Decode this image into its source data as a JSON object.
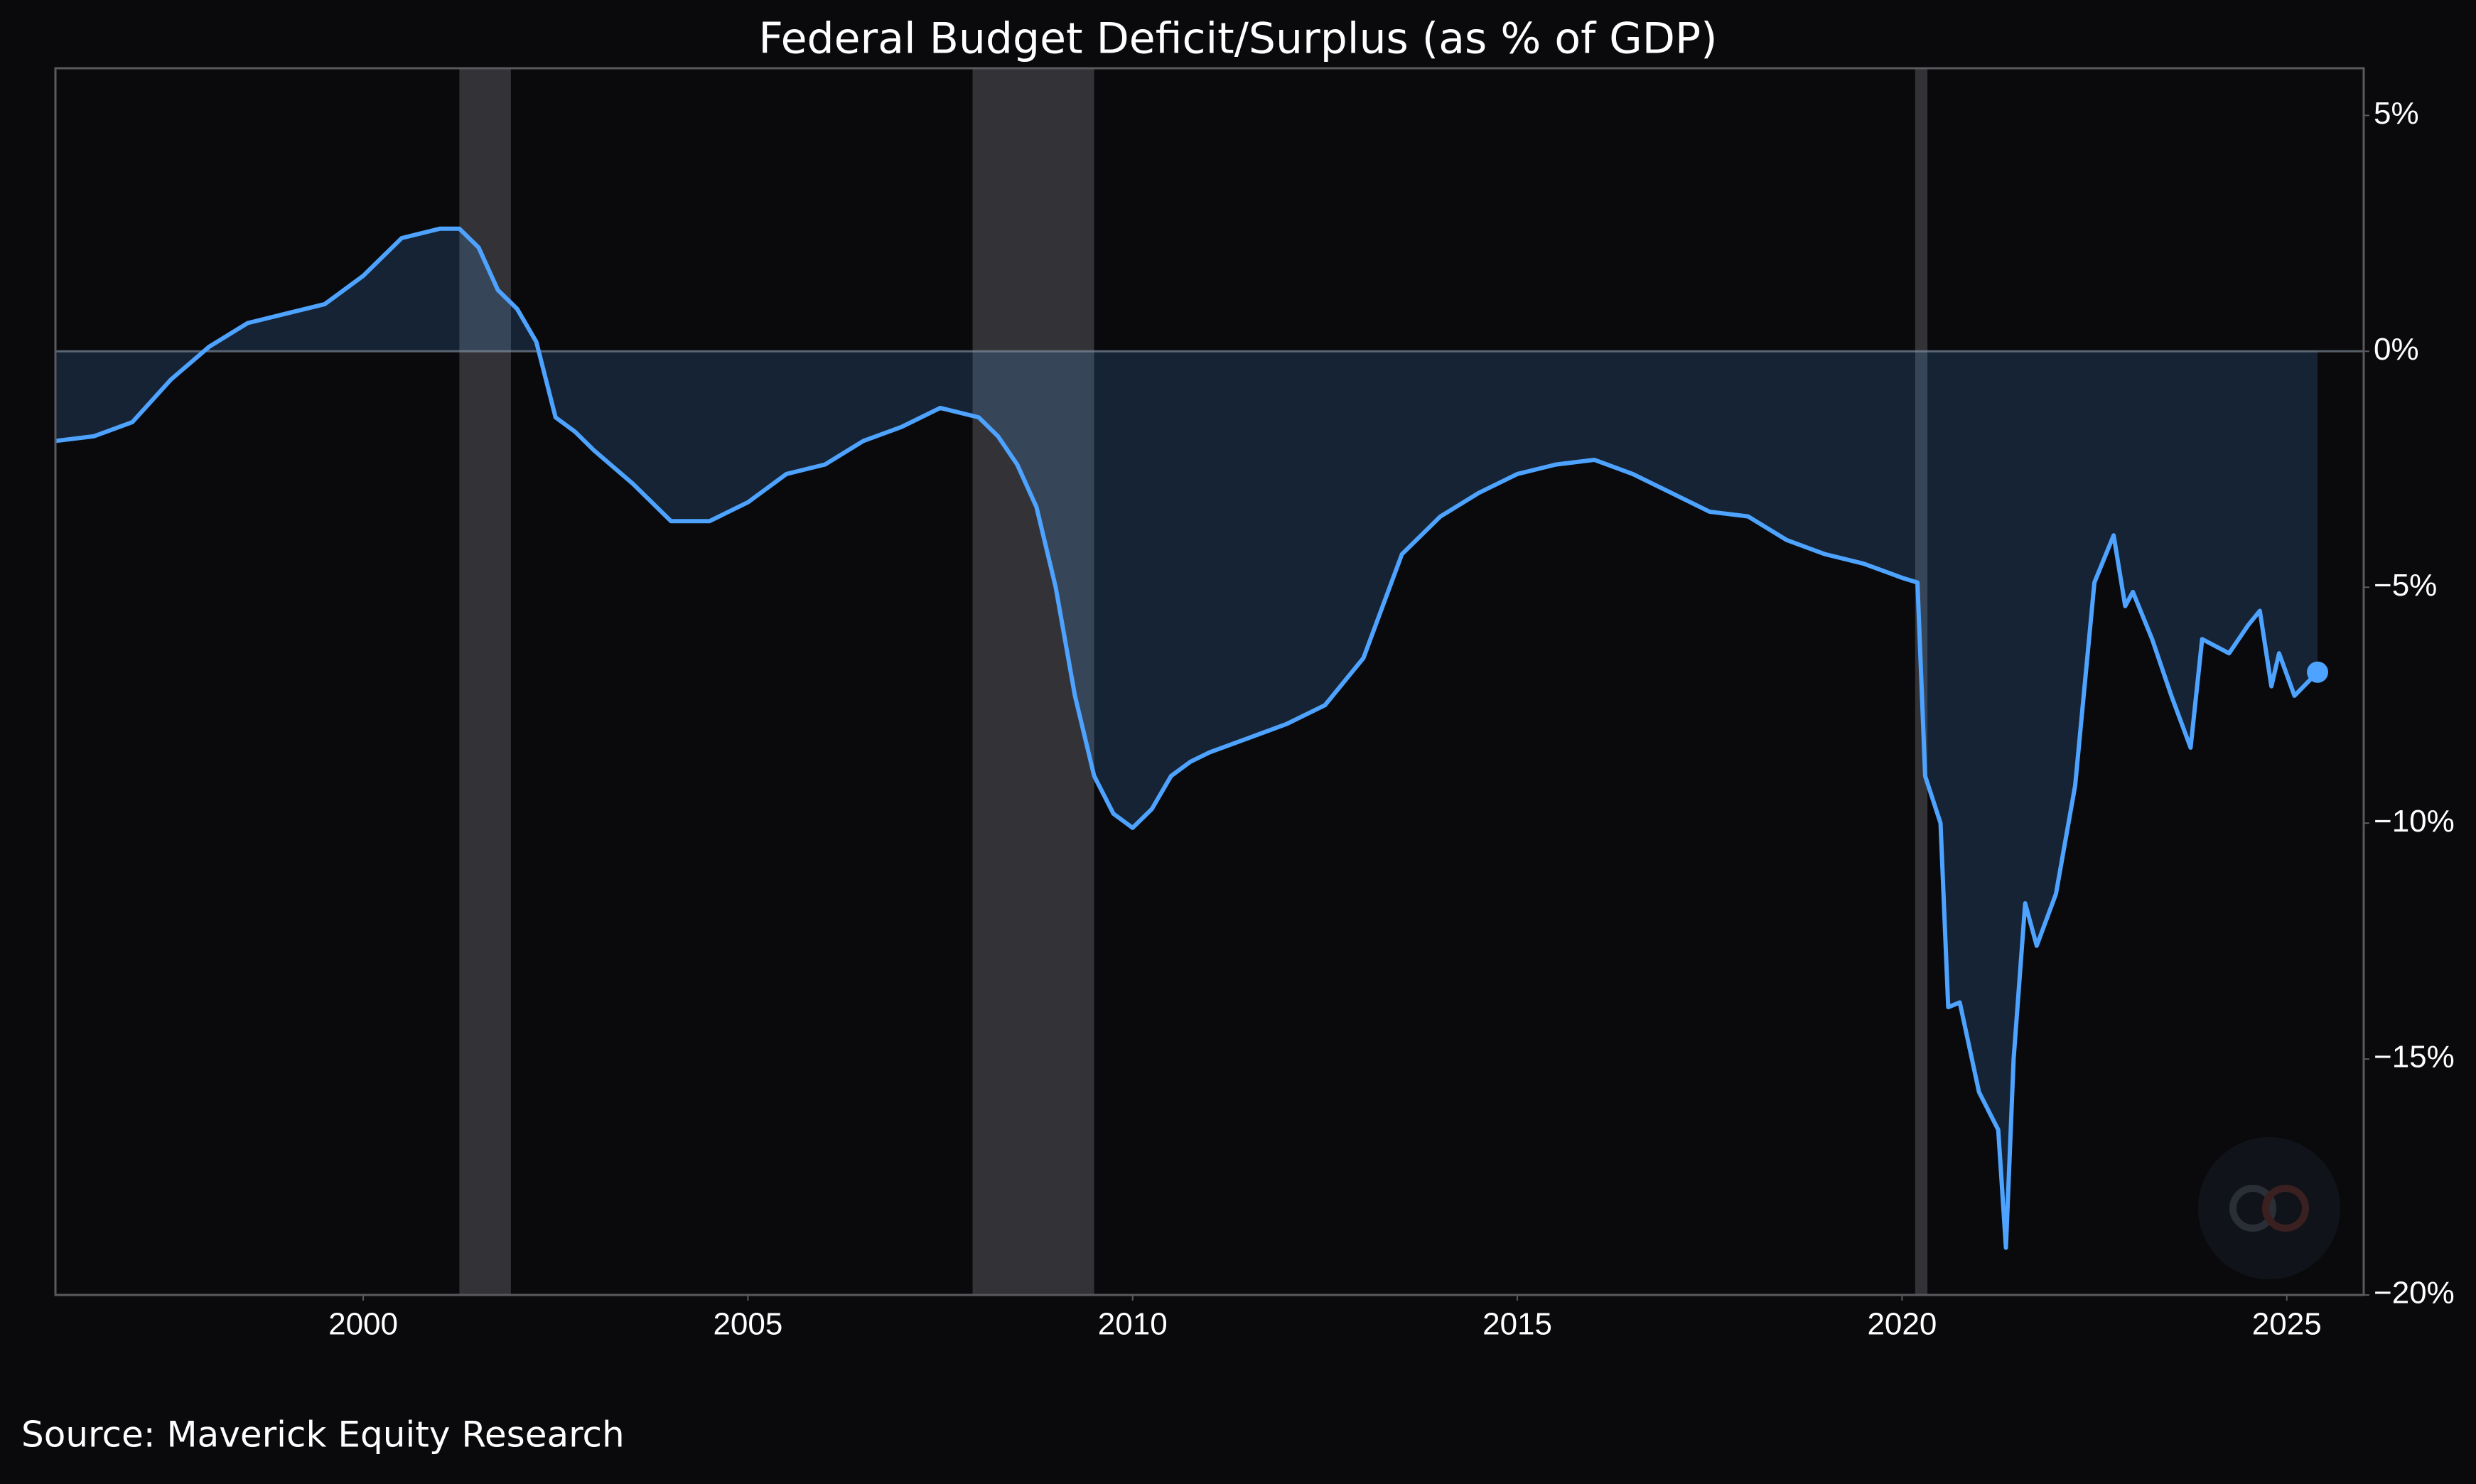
{
  "chart_data": {
    "type": "line",
    "title": "Federal Budget Deficit/Surplus (as % of GDP)",
    "source": "Source: Maverick Equity Research",
    "x": [
      1996.0,
      1996.5,
      1997.0,
      1997.5,
      1998.0,
      1998.5,
      1999.0,
      1999.5,
      2000.0,
      2000.5,
      2001.0,
      2001.25,
      2001.5,
      2001.75,
      2002.0,
      2002.25,
      2002.5,
      2002.75,
      2003.0,
      2003.5,
      2004.0,
      2004.5,
      2005.0,
      2005.5,
      2006.0,
      2006.5,
      2007.0,
      2007.5,
      2008.0,
      2008.25,
      2008.5,
      2008.75,
      2009.0,
      2009.25,
      2009.5,
      2009.75,
      2010.0,
      2010.25,
      2010.5,
      2010.75,
      2011.0,
      2011.5,
      2012.0,
      2012.5,
      2013.0,
      2013.5,
      2014.0,
      2014.5,
      2015.0,
      2015.5,
      2016.0,
      2016.5,
      2017.0,
      2017.5,
      2018.0,
      2018.5,
      2019.0,
      2019.5,
      2020.0,
      2020.2,
      2020.3,
      2020.5,
      2020.6,
      2020.75,
      2021.0,
      2021.25,
      2021.35,
      2021.45,
      2021.6,
      2021.75,
      2022.0,
      2022.25,
      2022.5,
      2022.75,
      2022.9,
      2023.0,
      2023.25,
      2023.5,
      2023.75,
      2023.9,
      2024.25,
      2024.5,
      2024.65,
      2024.8,
      2024.9,
      2025.1,
      2025.4
    ],
    "series": [
      {
        "name": "Federal Budget Deficit/Surplus",
        "color": "#4da3ff",
        "values": [
          -1.9,
          -1.8,
          -1.5,
          -0.6,
          0.1,
          0.6,
          0.8,
          1.0,
          1.6,
          2.4,
          2.6,
          2.6,
          2.2,
          1.3,
          0.9,
          0.2,
          -1.4,
          -1.7,
          -2.1,
          -2.8,
          -3.6,
          -3.6,
          -3.2,
          -2.6,
          -2.4,
          -1.9,
          -1.6,
          -1.2,
          -1.4,
          -1.8,
          -2.4,
          -3.3,
          -5.0,
          -7.3,
          -9.0,
          -9.8,
          -10.1,
          -9.7,
          -9.0,
          -8.7,
          -8.5,
          -8.2,
          -7.9,
          -7.5,
          -6.5,
          -4.3,
          -3.5,
          -3.0,
          -2.6,
          -2.4,
          -2.3,
          -2.6,
          -3.0,
          -3.4,
          -3.5,
          -4.0,
          -4.3,
          -4.5,
          -4.8,
          -4.9,
          -9.0,
          -10.0,
          -13.9,
          -13.8,
          -15.7,
          -16.5,
          -19.0,
          -15.0,
          -11.7,
          -12.6,
          -11.5,
          -9.2,
          -4.9,
          -3.9,
          -5.4,
          -5.1,
          -6.1,
          -7.3,
          -8.4,
          -6.1,
          -6.4,
          -5.8,
          -5.5,
          -7.1,
          -6.4,
          -7.3,
          -6.8
        ]
      }
    ],
    "xlim": [
      1996,
      2026
    ],
    "xticks": [
      2000,
      2005,
      2010,
      2015,
      2020,
      2025
    ],
    "ylim": [
      -20,
      6
    ],
    "yticks": [
      {
        "value": 5,
        "label": "5%"
      },
      {
        "value": 0,
        "label": "0%"
      },
      {
        "value": -5,
        "label": "−5%"
      },
      {
        "value": -10,
        "label": "−10%"
      },
      {
        "value": -15,
        "label": "−15%"
      },
      {
        "value": -20,
        "label": "−20%"
      }
    ],
    "hline": 0,
    "recessions": [
      [
        2001.25,
        2001.92
      ],
      [
        2007.92,
        2009.5
      ],
      [
        2020.17,
        2020.33
      ]
    ],
    "grid": false
  }
}
